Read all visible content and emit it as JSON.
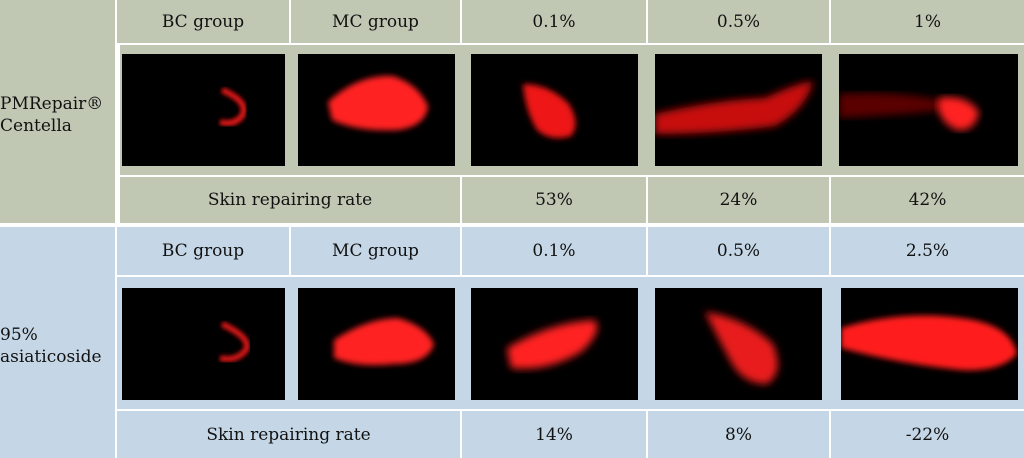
{
  "groups": [
    {
      "label_line1": "PMRepair®",
      "label_line2": "Centella",
      "headers": [
        "BC group",
        "MC group",
        "0.1%",
        "0.5%",
        "1%"
      ],
      "rate_label": "Skin repairing rate",
      "rates": [
        "53%",
        "24%",
        "42%"
      ]
    },
    {
      "label_line1": "95%",
      "label_line2": "asiaticoside",
      "headers": [
        "BC group",
        "MC group",
        "0.1%",
        "0.5%",
        "2.5%"
      ],
      "rate_label": "Skin repairing rate",
      "rates": [
        "14%",
        "8%",
        "-22%"
      ]
    }
  ],
  "colors": {
    "group1_bg": "#c0c8b4",
    "group2_bg": "#c5d7e6",
    "fluorescence": "#ff1a1a"
  }
}
